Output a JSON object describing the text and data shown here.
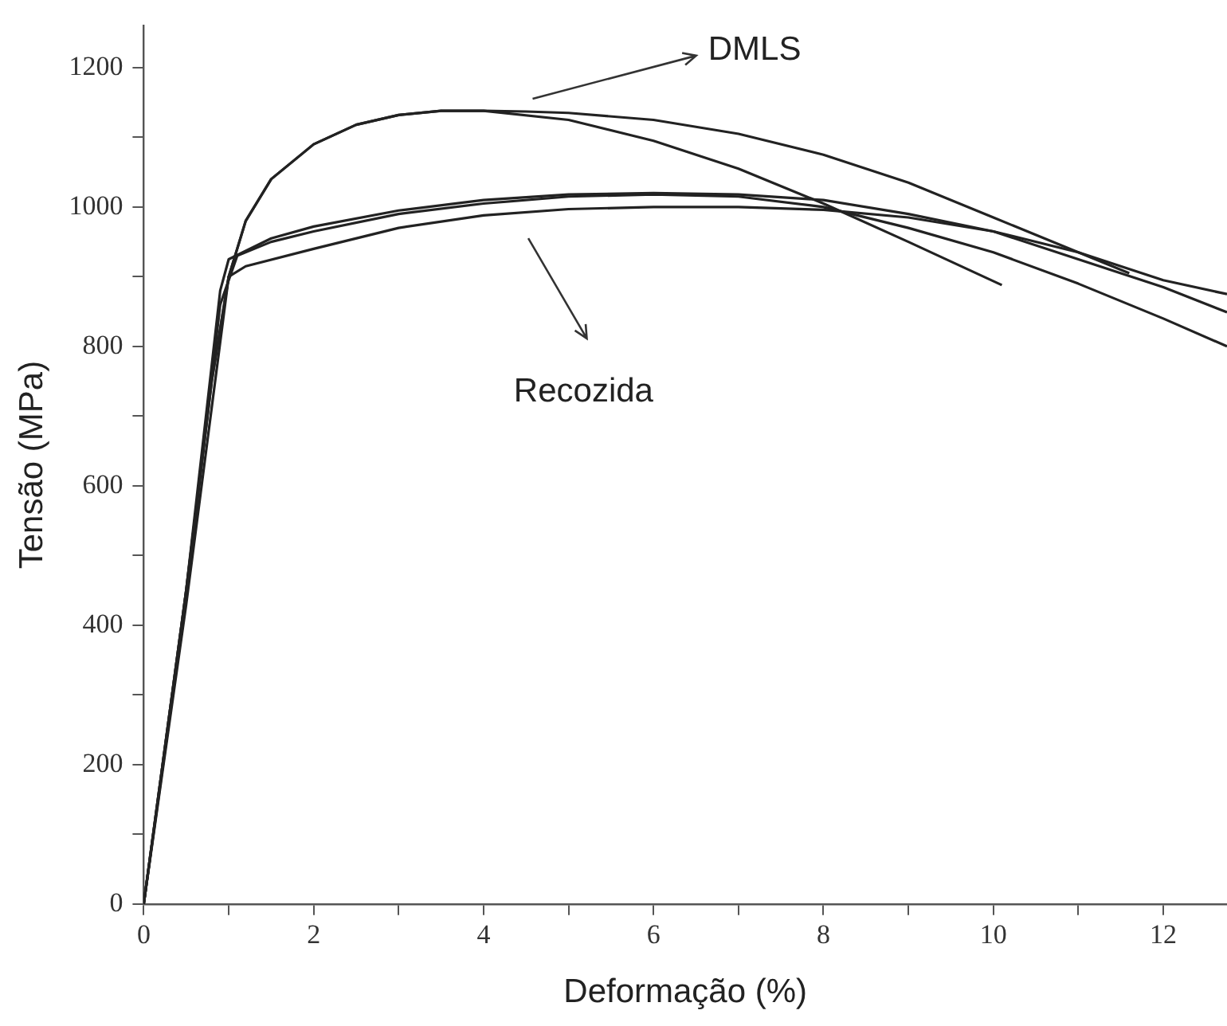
{
  "chart_data": {
    "type": "line",
    "xlabel": "Deformação (%)",
    "ylabel": "Tensão (MPa)",
    "xlim": [
      0,
      12.75
    ],
    "ylim": [
      0,
      1260
    ],
    "xticks": [
      0,
      {
        "value": 1,
        "label": null
      },
      2,
      {
        "value": 3,
        "label": null
      },
      4,
      {
        "value": 5,
        "label": null
      },
      6,
      {
        "value": 7,
        "label": null
      },
      8,
      {
        "value": 9,
        "label": null
      },
      10,
      {
        "value": 11,
        "label": null
      },
      12
    ],
    "yticks": [
      0,
      {
        "value": 100,
        "label": null
      },
      200,
      {
        "value": 300,
        "label": null
      },
      400,
      {
        "value": 500,
        "label": null
      },
      600,
      {
        "value": 700,
        "label": null
      },
      800,
      {
        "value": 900,
        "label": null
      },
      1000,
      {
        "value": 1100,
        "label": null
      },
      1200
    ],
    "grid": false,
    "legend": false,
    "marker": "none",
    "line_style": "solid",
    "annotations": [
      "DMLS",
      "Recozida"
    ],
    "series": [
      {
        "color": "#222222",
        "x": [
          0,
          0.5,
          0.8,
          1.0,
          1.2,
          1.5,
          2,
          2.5,
          3,
          3.5,
          4,
          5,
          6,
          7,
          8,
          9,
          10.1
        ],
        "values": [
          0,
          450,
          750,
          900,
          980,
          1040,
          1090,
          1118,
          1132,
          1138,
          1138,
          1125,
          1095,
          1055,
          1005,
          950,
          888
        ]
      },
      {
        "color": "#222222",
        "x": [
          0,
          0.5,
          0.8,
          1.0,
          1.2,
          1.5,
          2,
          2.5,
          3,
          3.5,
          4,
          4.5,
          5,
          6,
          7,
          8,
          9,
          10,
          11,
          12,
          12.75
        ],
        "values": [
          0,
          450,
          750,
          900,
          980,
          1040,
          1090,
          1118,
          1132,
          1138,
          1138,
          1137,
          1135,
          1125,
          1105,
          1075,
          1035,
          985,
          935,
          895,
          875
        ]
      },
      {
        "color": "#222222",
        "x": [
          0,
          0.5,
          0.9,
          1,
          1.5,
          2,
          3,
          4,
          5,
          6,
          7,
          8,
          9,
          10,
          11,
          12,
          12.75
        ],
        "values": [
          0,
          450,
          880,
          925,
          955,
          972,
          995,
          1010,
          1018,
          1020,
          1018,
          1010,
          990,
          965,
          925,
          885,
          849
        ]
      },
      {
        "color": "#222222",
        "x": [
          0,
          0.5,
          0.9,
          1.1,
          1.5,
          2,
          3,
          4,
          5,
          6,
          7,
          8,
          9,
          10,
          11,
          12,
          12.75
        ],
        "values": [
          0,
          440,
          860,
          930,
          950,
          965,
          990,
          1005,
          1015,
          1018,
          1015,
          1000,
          970,
          935,
          890,
          840,
          800
        ]
      },
      {
        "color": "#222222",
        "x": [
          0,
          0.5,
          1,
          1.2,
          2,
          3,
          4,
          5,
          6,
          7,
          8,
          9,
          10,
          11,
          11.6
        ],
        "values": [
          0,
          430,
          900,
          915,
          940,
          970,
          988,
          997,
          1000,
          1000,
          996,
          985,
          965,
          935,
          905
        ]
      }
    ]
  }
}
